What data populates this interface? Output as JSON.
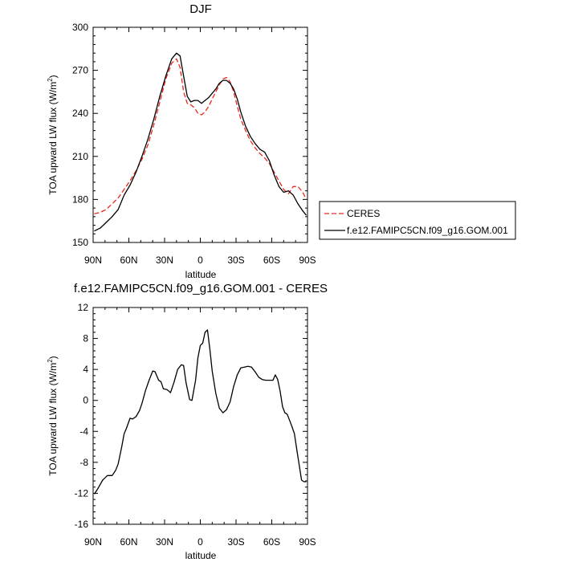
{
  "chart_data": [
    {
      "type": "line",
      "title": "DJF",
      "xlabel": "latitude",
      "ylabel": "TOA upward LW flux (W/m",
      "ylabel_superscript": "2",
      "ylabel_close": ")",
      "xlim": [
        90,
        -90
      ],
      "ylim": [
        150,
        300
      ],
      "x_ticks": [
        90,
        60,
        30,
        0,
        -30,
        -60,
        -90
      ],
      "x_tick_labels": [
        "90N",
        "60N",
        "30N",
        "0",
        "30S",
        "60S",
        "90S"
      ],
      "y_ticks": [
        150,
        180,
        210,
        240,
        270,
        300
      ],
      "y_tick_labels": [
        "150",
        "180",
        "210",
        "240",
        "270",
        "300"
      ],
      "legend_position": "outside-right",
      "series": [
        {
          "name": "CERES",
          "color": "#e8281e",
          "dash": "dashed",
          "x": [
            89,
            84,
            79,
            74,
            69,
            64,
            59,
            54,
            49,
            44,
            39,
            34,
            29,
            24,
            20,
            17,
            14,
            11,
            8,
            5,
            2,
            -1,
            -4,
            -7,
            -10,
            -13,
            -16,
            -19,
            -22,
            -25,
            -28,
            -31,
            -34,
            -38,
            -42,
            -46,
            -50,
            -54,
            -58,
            -62,
            -66,
            -70,
            -74,
            -78,
            -82,
            -86,
            -89
          ],
          "y": [
            170,
            171,
            173,
            177,
            181,
            187,
            193,
            200,
            208,
            218,
            232,
            248,
            264,
            275,
            278,
            272,
            255,
            247,
            246,
            244,
            240,
            239,
            241,
            245,
            250,
            255,
            260,
            264,
            265,
            262,
            255,
            245,
            236,
            228,
            221,
            216,
            212,
            209,
            205,
            199,
            193,
            187,
            184,
            189,
            189,
            185,
            180
          ]
        },
        {
          "name": "f.e12.FAMIPC5CN.f09_g16.GOM.001",
          "color": "#000000",
          "dash": "solid",
          "x": [
            89,
            84,
            79,
            74,
            69,
            64,
            59,
            54,
            49,
            44,
            39,
            34,
            29,
            24,
            20,
            17,
            14,
            11,
            8,
            5,
            2,
            -1,
            -4,
            -7,
            -10,
            -13,
            -16,
            -19,
            -22,
            -25,
            -28,
            -31,
            -34,
            -38,
            -42,
            -46,
            -50,
            -54,
            -58,
            -62,
            -66,
            -70,
            -74,
            -78,
            -82,
            -86,
            -89
          ],
          "y": [
            158,
            160,
            164,
            168,
            173,
            183,
            190,
            199,
            210,
            222,
            236,
            252,
            266,
            278,
            282,
            280,
            266,
            252,
            248,
            249,
            249,
            247,
            249,
            251,
            254,
            257,
            261,
            263,
            263,
            261,
            257,
            250,
            241,
            231,
            224,
            219,
            215,
            213,
            207,
            197,
            189,
            185,
            186,
            183,
            177,
            172,
            169
          ]
        }
      ]
    },
    {
      "type": "line",
      "title": "f.e12.FAMIPC5CN.f09_g16.GOM.001 - CERES",
      "xlabel": "latitude",
      "ylabel": "TOA upward LW flux (W/m",
      "ylabel_superscript": "2",
      "ylabel_close": ")",
      "xlim": [
        90,
        -90
      ],
      "ylim": [
        -16,
        12
      ],
      "x_ticks": [
        90,
        60,
        30,
        0,
        -30,
        -60,
        -90
      ],
      "x_tick_labels": [
        "90N",
        "60N",
        "30N",
        "0",
        "30S",
        "60S",
        "90S"
      ],
      "y_ticks": [
        -16,
        -12,
        -8,
        -4,
        0,
        4,
        8,
        12
      ],
      "y_tick_labels": [
        "-16",
        "-12",
        "-8",
        "-4",
        "0",
        "4",
        "8",
        "12"
      ],
      "series": [
        {
          "color": "#000000",
          "dash": "solid",
          "x": [
            89,
            86,
            82,
            78,
            74,
            71,
            69,
            66,
            64,
            62,
            59,
            57,
            54,
            51,
            49,
            46,
            43,
            40,
            38,
            35,
            33,
            31,
            28,
            25,
            22,
            19,
            16,
            14,
            12,
            9,
            7,
            4,
            2,
            0,
            -2,
            -4,
            -6,
            -8,
            -10,
            -13,
            -16,
            -19,
            -22,
            -25,
            -28,
            -31,
            -34,
            -37,
            -40,
            -43,
            -46,
            -49,
            -52,
            -55,
            -58,
            -61,
            -63,
            -65,
            -67,
            -69,
            -71,
            -73,
            -75,
            -77,
            -79,
            -81,
            -83,
            -85,
            -87,
            -89
          ],
          "y": [
            -12.1,
            -11.4,
            -10.3,
            -9.7,
            -9.7,
            -9.0,
            -8.2,
            -6.0,
            -4.3,
            -3.6,
            -2.3,
            -2.4,
            -2.1,
            -1.3,
            -0.4,
            1.3,
            2.6,
            3.8,
            3.7,
            2.6,
            2.4,
            1.5,
            1.4,
            1.0,
            2.4,
            4.0,
            4.6,
            4.5,
            2.3,
            0.1,
            0.0,
            2.6,
            5.5,
            7.1,
            7.4,
            8.8,
            9.1,
            6.6,
            3.8,
            0.9,
            -1.0,
            -1.6,
            -1.2,
            -0.2,
            1.8,
            3.3,
            4.2,
            4.3,
            4.4,
            4.3,
            3.7,
            3.0,
            2.7,
            2.6,
            2.6,
            2.6,
            3.3,
            2.7,
            1.2,
            -0.8,
            -1.6,
            -1.8,
            -2.6,
            -3.4,
            -4.3,
            -6.3,
            -8.3,
            -10.3,
            -10.5,
            -10.5
          ]
        }
      ]
    }
  ]
}
